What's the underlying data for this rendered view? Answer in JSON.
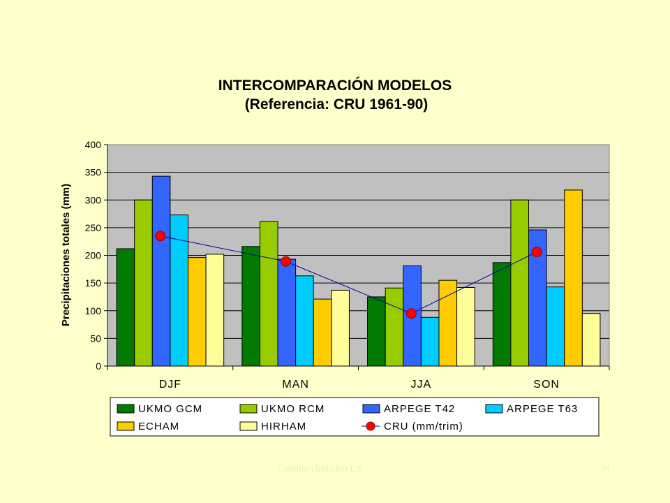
{
  "chart_data": {
    "type": "bar",
    "title": "INTERCOMPARACIÓN MODELOS",
    "subtitle": "(Referencia: CRU 1961-90)",
    "xlabel": "",
    "ylabel": "Precipitaciones totales (mm)",
    "ylim": [
      0,
      400
    ],
    "yticks": [
      "0",
      "50",
      "100",
      "150",
      "200",
      "250",
      "300",
      "350",
      "400"
    ],
    "categories": [
      "DJF",
      "MAN",
      "JJA",
      "SON"
    ],
    "grid": true,
    "legend_position": "bottom",
    "series": [
      {
        "name": "UKMO GCM",
        "type": "bar",
        "color": "#007a00",
        "values": [
          212,
          216,
          125,
          187
        ]
      },
      {
        "name": "UKMO RCM",
        "type": "bar",
        "color": "#99cc00",
        "values": [
          300,
          261,
          141,
          300
        ]
      },
      {
        "name": "ARPEGE T42",
        "type": "bar",
        "color": "#3366ff",
        "values": [
          343,
          193,
          181,
          246
        ]
      },
      {
        "name": "ARPEGE T63",
        "type": "bar",
        "color": "#00ccff",
        "values": [
          273,
          163,
          88,
          143
        ]
      },
      {
        "name": "ECHAM",
        "type": "bar",
        "color": "#ffcc00",
        "values": [
          196,
          121,
          155,
          318
        ]
      },
      {
        "name": "HIRHAM",
        "type": "bar",
        "color": "#ffff99",
        "values": [
          202,
          137,
          142,
          95
        ]
      },
      {
        "name": "CRU (mm/trim)",
        "type": "line",
        "color": "#ff0000",
        "line_color": "#000099",
        "values": [
          235,
          189,
          95,
          206
        ]
      }
    ]
  },
  "footer": {
    "left": "Cambio climático LS",
    "right": "34"
  }
}
